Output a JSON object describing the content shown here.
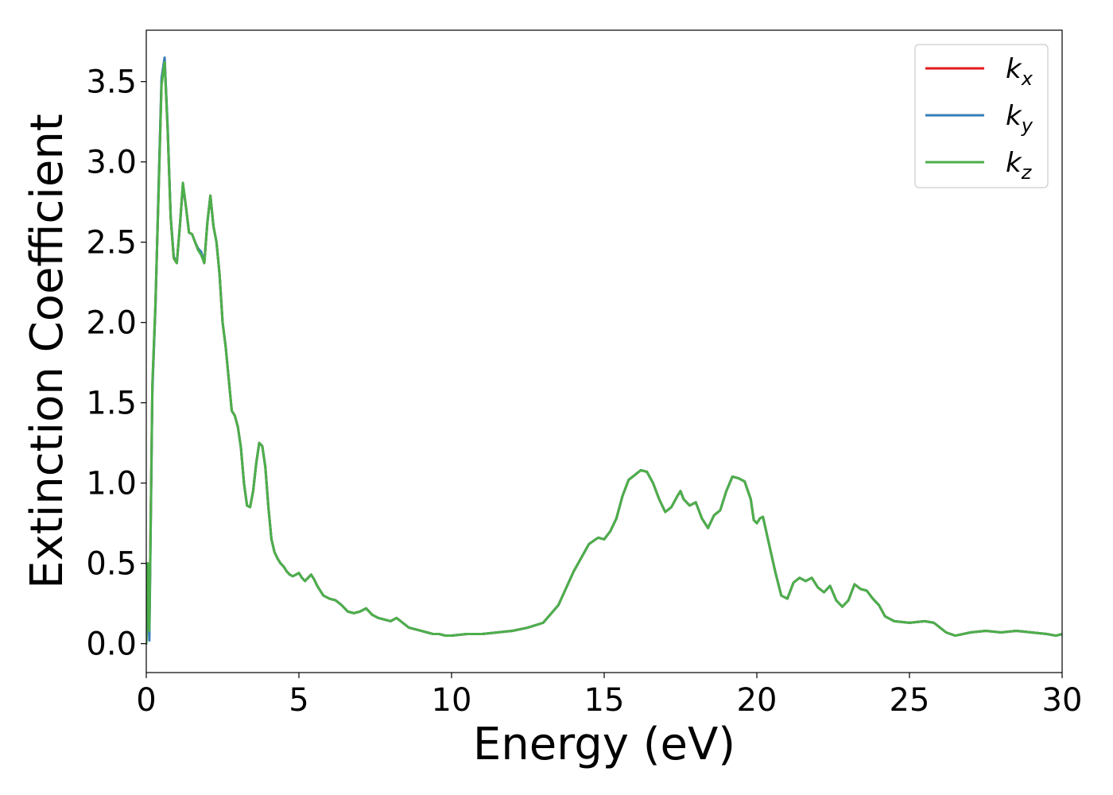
{
  "chart_data": {
    "type": "line",
    "xlabel": "Energy (eV)",
    "ylabel": "Extinction Coefficient",
    "xlim": [
      0,
      30
    ],
    "ylim": [
      -0.18,
      3.82
    ],
    "xticks": [
      "0",
      "5",
      "10",
      "15",
      "20",
      "25",
      "30"
    ],
    "yticks": [
      "0.0",
      "0.5",
      "1.0",
      "1.5",
      "2.0",
      "2.5",
      "3.0",
      "3.5"
    ],
    "xtick_values": [
      0,
      5,
      10,
      15,
      20,
      25,
      30
    ],
    "ytick_values": [
      0.0,
      0.5,
      1.0,
      1.5,
      2.0,
      2.5,
      3.0,
      3.5
    ],
    "grid": false,
    "legend_position": "top-right",
    "series": [
      {
        "name": "k_x",
        "legend_base": "k",
        "legend_sub": "x",
        "color": "#e41a1c",
        "x": [
          0.0,
          0.05,
          0.1,
          0.2,
          0.3,
          0.4,
          0.5,
          0.6,
          0.7,
          0.8,
          0.9,
          1.0,
          1.1,
          1.2,
          1.3,
          1.4,
          1.5,
          1.6,
          1.7,
          1.8,
          1.9,
          2.0,
          2.1,
          2.2,
          2.3,
          2.4,
          2.5,
          2.6,
          2.7,
          2.8,
          2.9,
          3.0,
          3.1,
          3.2,
          3.3,
          3.4,
          3.5,
          3.6,
          3.7,
          3.8,
          3.9,
          4.0,
          4.1,
          4.2,
          4.3,
          4.4,
          4.5,
          4.6,
          4.7,
          4.8,
          4.9,
          5.0,
          5.1,
          5.2,
          5.3,
          5.4,
          5.5,
          5.6,
          5.8,
          6.0,
          6.2,
          6.4,
          6.6,
          6.8,
          7.0,
          7.2,
          7.4,
          7.6,
          7.8,
          8.0,
          8.2,
          8.4,
          8.6,
          8.8,
          9.0,
          9.2,
          9.4,
          9.6,
          9.8,
          10.0,
          10.5,
          11.0,
          11.5,
          12.0,
          12.5,
          13.0,
          13.5,
          14.0,
          14.5,
          14.8,
          15.0,
          15.2,
          15.4,
          15.6,
          15.8,
          16.0,
          16.2,
          16.4,
          16.6,
          16.7,
          16.8,
          17.0,
          17.2,
          17.4,
          17.5,
          17.6,
          17.8,
          18.0,
          18.2,
          18.4,
          18.6,
          18.8,
          19.0,
          19.2,
          19.4,
          19.6,
          19.8,
          19.9,
          20.0,
          20.1,
          20.2,
          20.4,
          20.6,
          20.8,
          21.0,
          21.2,
          21.4,
          21.6,
          21.8,
          22.0,
          22.2,
          22.4,
          22.6,
          22.8,
          23.0,
          23.2,
          23.4,
          23.6,
          23.8,
          24.0,
          24.2,
          24.5,
          25.0,
          25.5,
          25.8,
          26.0,
          26.2,
          26.5,
          27.0,
          27.5,
          28.0,
          28.5,
          29.0,
          29.5,
          29.8,
          30.0
        ],
        "y": [
          0.0,
          0.5,
          0.1,
          1.6,
          2.1,
          2.8,
          3.5,
          3.64,
          3.2,
          2.65,
          2.4,
          2.37,
          2.6,
          2.86,
          2.72,
          2.56,
          2.55,
          2.5,
          2.45,
          2.43,
          2.37,
          2.62,
          2.79,
          2.6,
          2.5,
          2.3,
          2.0,
          1.85,
          1.65,
          1.45,
          1.42,
          1.35,
          1.22,
          1.0,
          0.86,
          0.85,
          0.95,
          1.12,
          1.25,
          1.23,
          1.1,
          0.85,
          0.65,
          0.57,
          0.53,
          0.5,
          0.48,
          0.45,
          0.43,
          0.42,
          0.43,
          0.44,
          0.41,
          0.39,
          0.41,
          0.43,
          0.4,
          0.36,
          0.3,
          0.28,
          0.27,
          0.24,
          0.2,
          0.19,
          0.2,
          0.22,
          0.18,
          0.16,
          0.15,
          0.14,
          0.16,
          0.13,
          0.1,
          0.09,
          0.08,
          0.07,
          0.06,
          0.06,
          0.05,
          0.05,
          0.06,
          0.06,
          0.07,
          0.08,
          0.1,
          0.13,
          0.24,
          0.45,
          0.62,
          0.66,
          0.65,
          0.7,
          0.78,
          0.92,
          1.02,
          1.05,
          1.08,
          1.07,
          1.0,
          0.95,
          0.9,
          0.82,
          0.85,
          0.92,
          0.95,
          0.9,
          0.86,
          0.88,
          0.78,
          0.72,
          0.8,
          0.83,
          0.95,
          1.04,
          1.03,
          1.01,
          0.9,
          0.77,
          0.75,
          0.78,
          0.79,
          0.62,
          0.45,
          0.3,
          0.28,
          0.38,
          0.41,
          0.39,
          0.41,
          0.35,
          0.32,
          0.36,
          0.27,
          0.23,
          0.27,
          0.37,
          0.34,
          0.33,
          0.28,
          0.24,
          0.17,
          0.14,
          0.13,
          0.14,
          0.13,
          0.1,
          0.07,
          0.05,
          0.07,
          0.08,
          0.07,
          0.08,
          0.07,
          0.06,
          0.05,
          0.06
        ]
      },
      {
        "name": "k_y",
        "legend_base": "k",
        "legend_sub": "y",
        "color": "#377eb8",
        "x": [
          0.0,
          0.05,
          0.1,
          0.2,
          0.3,
          0.4,
          0.5,
          0.6,
          0.7,
          0.8,
          0.9,
          1.0,
          1.1,
          1.2,
          1.3,
          1.4,
          1.5,
          1.6,
          1.7,
          1.8,
          1.9,
          2.0,
          2.1,
          2.2,
          2.3,
          2.4,
          2.5,
          2.6,
          2.7,
          2.8,
          2.9,
          3.0,
          3.1,
          3.2,
          3.3,
          3.4,
          3.5,
          3.6,
          3.7,
          3.8,
          3.9,
          4.0,
          4.1,
          4.2,
          4.3,
          4.4,
          4.5,
          4.6,
          4.7,
          4.8,
          4.9,
          5.0,
          5.1,
          5.2,
          5.3,
          5.4,
          5.5,
          5.6,
          5.8,
          6.0,
          6.2,
          6.4,
          6.6,
          6.8,
          7.0,
          7.2,
          7.4,
          7.6,
          7.8,
          8.0,
          8.2,
          8.4,
          8.6,
          8.8,
          9.0,
          9.2,
          9.4,
          9.6,
          9.8,
          10.0,
          10.5,
          11.0,
          11.5,
          12.0,
          12.5,
          13.0,
          13.5,
          14.0,
          14.5,
          14.8,
          15.0,
          15.2,
          15.4,
          15.6,
          15.8,
          16.0,
          16.2,
          16.4,
          16.6,
          16.7,
          16.8,
          17.0,
          17.2,
          17.4,
          17.5,
          17.6,
          17.8,
          18.0,
          18.2,
          18.4,
          18.6,
          18.8,
          19.0,
          19.2,
          19.4,
          19.6,
          19.8,
          19.9,
          20.0,
          20.1,
          20.2,
          20.4,
          20.6,
          20.8,
          21.0,
          21.2,
          21.4,
          21.6,
          21.8,
          22.0,
          22.2,
          22.4,
          22.6,
          22.8,
          23.0,
          23.2,
          23.4,
          23.6,
          23.8,
          24.0,
          24.2,
          24.5,
          25.0,
          25.5,
          25.8,
          26.0,
          26.2,
          26.5,
          27.0,
          27.5,
          28.0,
          28.5,
          29.0,
          29.5,
          29.8,
          30.0
        ],
        "y": [
          0.0,
          0.45,
          0.02,
          1.58,
          2.1,
          2.82,
          3.52,
          3.65,
          3.22,
          2.66,
          2.41,
          2.37,
          2.6,
          2.86,
          2.72,
          2.56,
          2.55,
          2.5,
          2.46,
          2.44,
          2.37,
          2.62,
          2.79,
          2.6,
          2.5,
          2.3,
          2.0,
          1.85,
          1.65,
          1.45,
          1.42,
          1.35,
          1.22,
          1.0,
          0.86,
          0.85,
          0.95,
          1.12,
          1.25,
          1.23,
          1.1,
          0.85,
          0.65,
          0.57,
          0.53,
          0.5,
          0.48,
          0.45,
          0.43,
          0.42,
          0.43,
          0.44,
          0.41,
          0.39,
          0.41,
          0.43,
          0.4,
          0.36,
          0.3,
          0.28,
          0.27,
          0.24,
          0.2,
          0.19,
          0.2,
          0.22,
          0.18,
          0.16,
          0.15,
          0.14,
          0.16,
          0.13,
          0.1,
          0.09,
          0.08,
          0.07,
          0.06,
          0.06,
          0.05,
          0.05,
          0.06,
          0.06,
          0.07,
          0.08,
          0.1,
          0.13,
          0.24,
          0.45,
          0.62,
          0.66,
          0.65,
          0.7,
          0.78,
          0.92,
          1.02,
          1.05,
          1.08,
          1.07,
          1.0,
          0.95,
          0.9,
          0.82,
          0.85,
          0.92,
          0.95,
          0.9,
          0.86,
          0.88,
          0.78,
          0.72,
          0.8,
          0.83,
          0.95,
          1.04,
          1.03,
          1.01,
          0.9,
          0.77,
          0.75,
          0.78,
          0.79,
          0.62,
          0.45,
          0.3,
          0.28,
          0.38,
          0.41,
          0.39,
          0.41,
          0.35,
          0.32,
          0.36,
          0.27,
          0.23,
          0.27,
          0.37,
          0.34,
          0.33,
          0.28,
          0.24,
          0.17,
          0.14,
          0.13,
          0.14,
          0.13,
          0.1,
          0.07,
          0.05,
          0.07,
          0.08,
          0.07,
          0.08,
          0.07,
          0.06,
          0.05,
          0.06
        ]
      },
      {
        "name": "k_z",
        "legend_base": "k",
        "legend_sub": "z",
        "color": "#4daf4a",
        "x": [
          0.0,
          0.05,
          0.1,
          0.2,
          0.3,
          0.4,
          0.5,
          0.6,
          0.7,
          0.8,
          0.9,
          1.0,
          1.1,
          1.2,
          1.3,
          1.4,
          1.5,
          1.6,
          1.7,
          1.8,
          1.9,
          2.0,
          2.1,
          2.2,
          2.3,
          2.4,
          2.5,
          2.6,
          2.7,
          2.8,
          2.9,
          3.0,
          3.1,
          3.2,
          3.3,
          3.4,
          3.5,
          3.6,
          3.7,
          3.8,
          3.9,
          4.0,
          4.1,
          4.2,
          4.3,
          4.4,
          4.5,
          4.6,
          4.7,
          4.8,
          4.9,
          5.0,
          5.1,
          5.2,
          5.3,
          5.4,
          5.5,
          5.6,
          5.8,
          6.0,
          6.2,
          6.4,
          6.6,
          6.8,
          7.0,
          7.2,
          7.4,
          7.6,
          7.8,
          8.0,
          8.2,
          8.4,
          8.6,
          8.8,
          9.0,
          9.2,
          9.4,
          9.6,
          9.8,
          10.0,
          10.5,
          11.0,
          11.5,
          12.0,
          12.5,
          13.0,
          13.5,
          14.0,
          14.5,
          14.8,
          15.0,
          15.2,
          15.4,
          15.6,
          15.8,
          16.0,
          16.2,
          16.4,
          16.6,
          16.7,
          16.8,
          17.0,
          17.2,
          17.4,
          17.5,
          17.6,
          17.8,
          18.0,
          18.2,
          18.4,
          18.6,
          18.8,
          19.0,
          19.2,
          19.4,
          19.6,
          19.8,
          19.9,
          20.0,
          20.1,
          20.2,
          20.4,
          20.6,
          20.8,
          21.0,
          21.2,
          21.4,
          21.6,
          21.8,
          22.0,
          22.2,
          22.4,
          22.6,
          22.8,
          23.0,
          23.2,
          23.4,
          23.6,
          23.8,
          24.0,
          24.2,
          24.5,
          25.0,
          25.5,
          25.8,
          26.0,
          26.2,
          26.5,
          27.0,
          27.5,
          28.0,
          28.5,
          29.0,
          29.5,
          29.8,
          30.0
        ],
        "y": [
          0.0,
          0.5,
          0.08,
          1.62,
          2.12,
          2.78,
          3.48,
          3.62,
          3.2,
          2.65,
          2.4,
          2.37,
          2.6,
          2.87,
          2.72,
          2.56,
          2.55,
          2.5,
          2.45,
          2.42,
          2.37,
          2.62,
          2.79,
          2.6,
          2.5,
          2.3,
          2.0,
          1.85,
          1.65,
          1.45,
          1.42,
          1.35,
          1.22,
          1.0,
          0.86,
          0.85,
          0.95,
          1.12,
          1.25,
          1.23,
          1.1,
          0.85,
          0.65,
          0.57,
          0.53,
          0.5,
          0.48,
          0.45,
          0.43,
          0.42,
          0.43,
          0.44,
          0.41,
          0.39,
          0.41,
          0.43,
          0.4,
          0.36,
          0.3,
          0.28,
          0.27,
          0.24,
          0.2,
          0.19,
          0.2,
          0.22,
          0.18,
          0.16,
          0.15,
          0.14,
          0.16,
          0.13,
          0.1,
          0.09,
          0.08,
          0.07,
          0.06,
          0.06,
          0.05,
          0.05,
          0.06,
          0.06,
          0.07,
          0.08,
          0.1,
          0.13,
          0.24,
          0.45,
          0.62,
          0.66,
          0.65,
          0.7,
          0.78,
          0.92,
          1.02,
          1.05,
          1.08,
          1.07,
          1.0,
          0.95,
          0.9,
          0.82,
          0.85,
          0.92,
          0.95,
          0.9,
          0.86,
          0.88,
          0.78,
          0.72,
          0.8,
          0.83,
          0.95,
          1.04,
          1.03,
          1.01,
          0.9,
          0.77,
          0.75,
          0.78,
          0.79,
          0.62,
          0.45,
          0.3,
          0.28,
          0.38,
          0.41,
          0.39,
          0.41,
          0.35,
          0.32,
          0.36,
          0.27,
          0.23,
          0.27,
          0.37,
          0.34,
          0.33,
          0.28,
          0.24,
          0.17,
          0.14,
          0.13,
          0.14,
          0.13,
          0.1,
          0.07,
          0.05,
          0.07,
          0.08,
          0.07,
          0.08,
          0.07,
          0.06,
          0.05,
          0.06
        ]
      }
    ]
  }
}
